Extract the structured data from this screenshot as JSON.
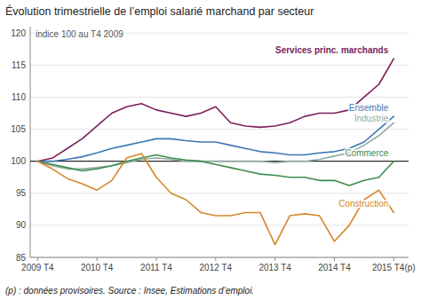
{
  "chart_data": {
    "type": "line",
    "title": "Évolution trimestrielle de l’emploi salarié marchand par secteur",
    "subtitle": "indice 100 au T4 2009",
    "footnote": "(p) : données provisoires. Source : Insee, Estimations d’emploi.",
    "categories": [
      "2009 T4",
      null,
      null,
      null,
      "2010 T4",
      null,
      null,
      null,
      "2011 T4",
      null,
      null,
      null,
      "2012 T4",
      null,
      null,
      null,
      "2013 T4",
      null,
      null,
      null,
      "2014 T4",
      null,
      null,
      null,
      "2015 T4(p)"
    ],
    "series": [
      {
        "name": "Services princ. marchands",
        "color": "#7b1f5e",
        "values": [
          100,
          100.5,
          102,
          103.5,
          105.5,
          107.5,
          108.5,
          109,
          108,
          107.5,
          107,
          107.5,
          108.5,
          106,
          105.5,
          105.3,
          105.5,
          106,
          107,
          107.5,
          107.5,
          108,
          110,
          112,
          116
        ]
      },
      {
        "name": "Ensemble",
        "color": "#3c78b4",
        "values": [
          100,
          100,
          100.3,
          100.7,
          101.3,
          102,
          102.5,
          103,
          103.5,
          103.5,
          103.2,
          103,
          103,
          102.5,
          102,
          101.5,
          101.3,
          101,
          101,
          101.3,
          101.5,
          102,
          103,
          105,
          107
        ]
      },
      {
        "name": "Industrie",
        "color": "#8faba0",
        "values": [
          100,
          99.3,
          98.8,
          98.8,
          99,
          99.3,
          99.8,
          100.3,
          100.5,
          100.3,
          100,
          100,
          100,
          100,
          100,
          100,
          99.8,
          100,
          100,
          100.3,
          100.8,
          101.3,
          102.5,
          104,
          106
        ]
      },
      {
        "name": "Commerce",
        "color": "#3e8c4e",
        "values": [
          100,
          99.5,
          99,
          98.5,
          98.8,
          99.3,
          100,
          100.5,
          101,
          100.5,
          100.2,
          100,
          99.5,
          99,
          98.5,
          98,
          97.8,
          97.5,
          97.5,
          97,
          97,
          96.2,
          97,
          97.5,
          100
        ]
      },
      {
        "name": "Construction",
        "color": "#d4872a",
        "values": [
          100,
          98.8,
          97.3,
          96.5,
          95.5,
          97,
          100.5,
          101.2,
          97.5,
          95,
          94,
          92,
          91.5,
          91.5,
          92,
          92,
          87,
          91.5,
          91.8,
          91.5,
          87.5,
          90,
          94,
          95.5,
          92
        ]
      }
    ],
    "reference_line": 100,
    "ylim": [
      85,
      121
    ],
    "yticks": [
      85,
      90,
      95,
      100,
      105,
      110,
      115,
      120
    ],
    "grid": true
  }
}
